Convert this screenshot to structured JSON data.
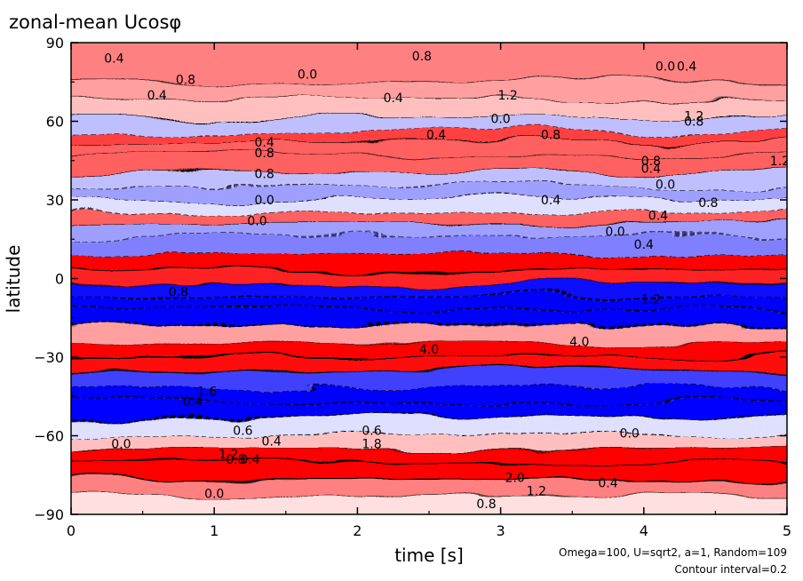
{
  "chart_data": {
    "type": "heatmap",
    "title": "zonal-mean Ucosφ",
    "xlabel": "time [s]",
    "ylabel": "latitude",
    "xlim": [
      0,
      5
    ],
    "ylim": [
      -90,
      90
    ],
    "x_ticks": [
      "0",
      "1",
      "2",
      "3",
      "4",
      "5"
    ],
    "y_ticks": [
      "90",
      "60",
      "30",
      "0",
      "−30",
      "−60",
      "−90"
    ],
    "footnote_1": "Omega=100, U=sqrt2, a=1, Random=109",
    "footnote_2": "Contour interval=0.2",
    "colors": {
      "positive": "#ff0000",
      "negative": "#0000ff",
      "zero": "#ffffff",
      "contour": "#000000"
    },
    "bands": [
      {
        "lat": 78,
        "value": 0.8
      },
      {
        "lat": 72,
        "value": 0.6
      },
      {
        "lat": 65,
        "value": 0.4
      },
      {
        "lat": 58,
        "value": -0.4
      },
      {
        "lat": 54,
        "value": 1.2
      },
      {
        "lat": 50,
        "value": 1.0
      },
      {
        "lat": 44,
        "value": 1.0
      },
      {
        "lat": 37,
        "value": -0.4
      },
      {
        "lat": 33,
        "value": -0.6
      },
      {
        "lat": 27,
        "value": -0.2
      },
      {
        "lat": 23,
        "value": 1.0
      },
      {
        "lat": 18,
        "value": -0.6
      },
      {
        "lat": 14,
        "value": -0.8
      },
      {
        "lat": 6,
        "value": 3.0
      },
      {
        "lat": 0,
        "value": 1.4
      },
      {
        "lat": -5,
        "value": -1.5
      },
      {
        "lat": -10,
        "value": -4.0
      },
      {
        "lat": -15,
        "value": -3.0
      },
      {
        "lat": -21,
        "value": 0.6
      },
      {
        "lat": -27,
        "value": 4.0
      },
      {
        "lat": -33,
        "value": 1.5
      },
      {
        "lat": -39,
        "value": -1.2
      },
      {
        "lat": -44,
        "value": -2.6
      },
      {
        "lat": -50,
        "value": -1.6
      },
      {
        "lat": -56,
        "value": -0.2
      },
      {
        "lat": -63,
        "value": 0.4
      },
      {
        "lat": -68,
        "value": 1.6
      },
      {
        "lat": -74,
        "value": 2.0
      },
      {
        "lat": -80,
        "value": 0.8
      },
      {
        "lat": -86,
        "value": 0.2
      }
    ],
    "contour_labels": [
      {
        "t": 0.3,
        "lat": 84,
        "text": "0.4"
      },
      {
        "t": 0.8,
        "lat": 76,
        "text": "0.8"
      },
      {
        "t": 1.65,
        "lat": 78,
        "text": "0.0"
      },
      {
        "t": 2.45,
        "lat": 85,
        "text": "0.8"
      },
      {
        "t": 3.05,
        "lat": 70,
        "text": "1.2"
      },
      {
        "t": 4.15,
        "lat": 81,
        "text": "0.0"
      },
      {
        "t": 4.3,
        "lat": 81,
        "text": "0.4"
      },
      {
        "t": 4.35,
        "lat": 62,
        "text": "1.2"
      },
      {
        "t": 4.35,
        "lat": 60,
        "text": "0.8"
      },
      {
        "t": 0.6,
        "lat": 70,
        "text": "0.4"
      },
      {
        "t": 2.25,
        "lat": 69,
        "text": "0.4"
      },
      {
        "t": 3.0,
        "lat": 61,
        "text": "0.0"
      },
      {
        "t": 1.35,
        "lat": 52,
        "text": "0.4"
      },
      {
        "t": 1.35,
        "lat": 48,
        "text": "0.8"
      },
      {
        "t": 2.55,
        "lat": 55,
        "text": "0.4"
      },
      {
        "t": 3.35,
        "lat": 55,
        "text": "0.8"
      },
      {
        "t": 4.05,
        "lat": 45,
        "text": "0.8"
      },
      {
        "t": 4.05,
        "lat": 42,
        "text": "0.4"
      },
      {
        "t": 4.15,
        "lat": 36,
        "text": "0.0"
      },
      {
        "t": 4.95,
        "lat": 45,
        "text": "1.2"
      },
      {
        "t": 1.35,
        "lat": 40,
        "text": "0.8"
      },
      {
        "t": 1.35,
        "lat": 30,
        "text": "0.0"
      },
      {
        "t": 3.35,
        "lat": 30,
        "text": "0.4"
      },
      {
        "t": 4.45,
        "lat": 29,
        "text": "0.8"
      },
      {
        "t": 4.1,
        "lat": 24,
        "text": "0.4"
      },
      {
        "t": 1.3,
        "lat": 22,
        "text": "0.0"
      },
      {
        "t": 3.8,
        "lat": 18,
        "text": "0.0"
      },
      {
        "t": 4.0,
        "lat": 13,
        "text": "0.4"
      },
      {
        "t": 0.75,
        "lat": -5,
        "text": "0.8"
      },
      {
        "t": 4.05,
        "lat": -8,
        "text": "1.2"
      },
      {
        "t": 2.5,
        "lat": -27,
        "text": "4.0"
      },
      {
        "t": 3.55,
        "lat": -24,
        "text": "4.0"
      },
      {
        "t": 0.95,
        "lat": -43,
        "text": "1.6"
      },
      {
        "t": 0.85,
        "lat": -47,
        "text": "0.4"
      },
      {
        "t": 1.2,
        "lat": -58,
        "text": "0.6"
      },
      {
        "t": 1.4,
        "lat": -62,
        "text": "0.4"
      },
      {
        "t": 0.35,
        "lat": -63,
        "text": "0.0"
      },
      {
        "t": 1.1,
        "lat": -67,
        "text": "1.2"
      },
      {
        "t": 1.15,
        "lat": -69,
        "text": "0.8"
      },
      {
        "t": 1.25,
        "lat": -69,
        "text": "0.4"
      },
      {
        "t": 2.1,
        "lat": -63,
        "text": "1.8"
      },
      {
        "t": 2.1,
        "lat": -58,
        "text": "0.6"
      },
      {
        "t": 3.1,
        "lat": -76,
        "text": "2.0"
      },
      {
        "t": 3.25,
        "lat": -81,
        "text": "1.2"
      },
      {
        "t": 2.9,
        "lat": -86,
        "text": "0.8"
      },
      {
        "t": 1.0,
        "lat": -82,
        "text": "0.0"
      },
      {
        "t": 3.9,
        "lat": -59,
        "text": "0.0"
      },
      {
        "t": 3.75,
        "lat": -78,
        "text": "0.4"
      }
    ]
  }
}
